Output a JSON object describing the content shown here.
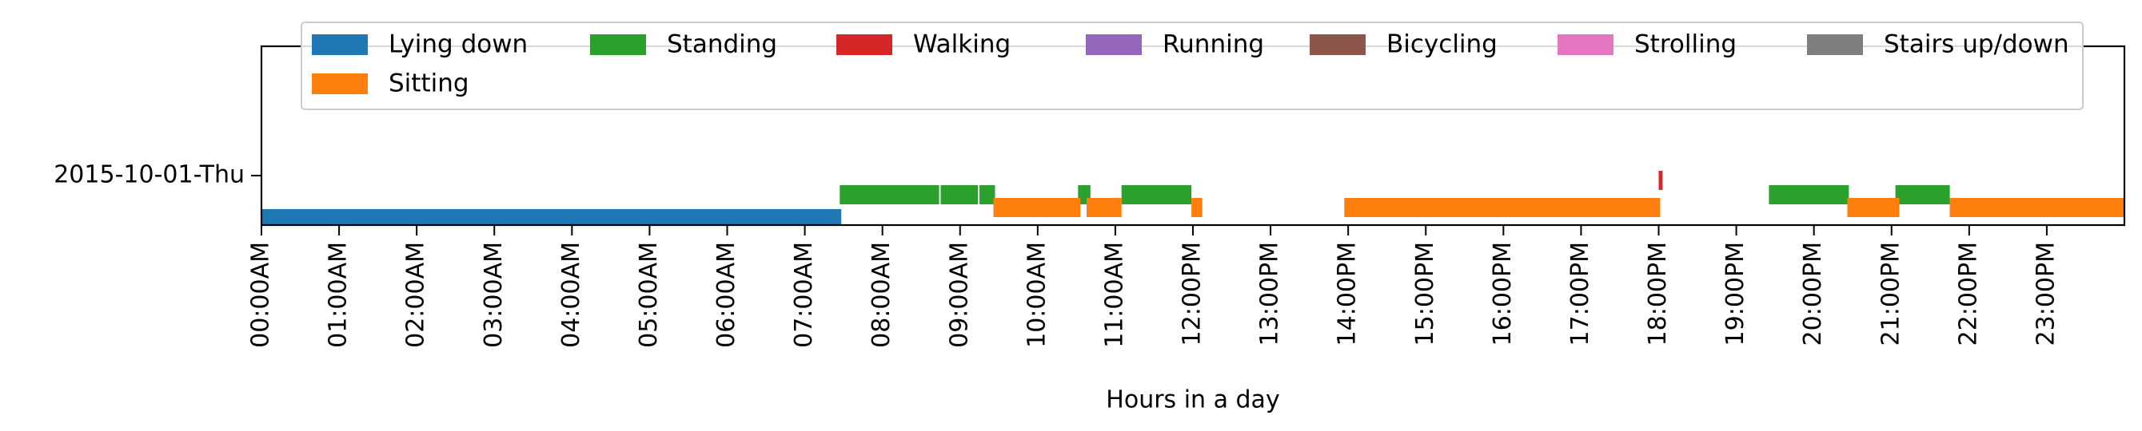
{
  "chart_data": {
    "type": "timeline",
    "title": "",
    "xlabel": "Hours in a day",
    "ylabel": "",
    "xlim_hours": [
      0,
      24
    ],
    "y_categories": [
      "2015-10-01-Thu"
    ],
    "x_tick_labels": [
      "00:00AM",
      "01:00AM",
      "02:00AM",
      "03:00AM",
      "04:00AM",
      "05:00AM",
      "06:00AM",
      "07:00AM",
      "08:00AM",
      "09:00AM",
      "10:00AM",
      "11:00AM",
      "12:00PM",
      "13:00PM",
      "14:00PM",
      "15:00PM",
      "16:00PM",
      "17:00PM",
      "18:00PM",
      "19:00PM",
      "20:00PM",
      "21:00PM",
      "22:00PM",
      "23:00PM"
    ],
    "legend_position": "top-center",
    "grid": false,
    "series": [
      {
        "name": "Lying down",
        "color": "#1f77b4",
        "intervals": [
          [
            0.0,
            7.47
          ]
        ]
      },
      {
        "name": "Standing",
        "color": "#2ca02c",
        "intervals": [
          [
            7.45,
            8.73
          ],
          [
            8.75,
            9.23
          ],
          [
            9.25,
            9.45
          ],
          [
            10.52,
            10.68
          ],
          [
            11.08,
            11.98
          ],
          [
            19.42,
            20.45
          ],
          [
            21.05,
            21.75
          ]
        ]
      },
      {
        "name": "Walking",
        "color": "#d62728",
        "intervals": [
          [
            18.0,
            18.05
          ]
        ]
      },
      {
        "name": "Running",
        "color": "#9467bd",
        "intervals": []
      },
      {
        "name": "Bicycling",
        "color": "#8c564b",
        "intervals": []
      },
      {
        "name": "Strolling",
        "color": "#e377c2",
        "intervals": []
      },
      {
        "name": "Stairs up/down",
        "color": "#7f7f7f",
        "intervals": []
      },
      {
        "name": "Sitting",
        "color": "#ff7f0e",
        "intervals": [
          [
            9.43,
            10.55
          ],
          [
            10.63,
            11.08
          ],
          [
            11.98,
            12.12
          ],
          [
            13.95,
            18.02
          ],
          [
            20.43,
            21.1
          ],
          [
            21.75,
            24.0
          ]
        ]
      }
    ]
  }
}
